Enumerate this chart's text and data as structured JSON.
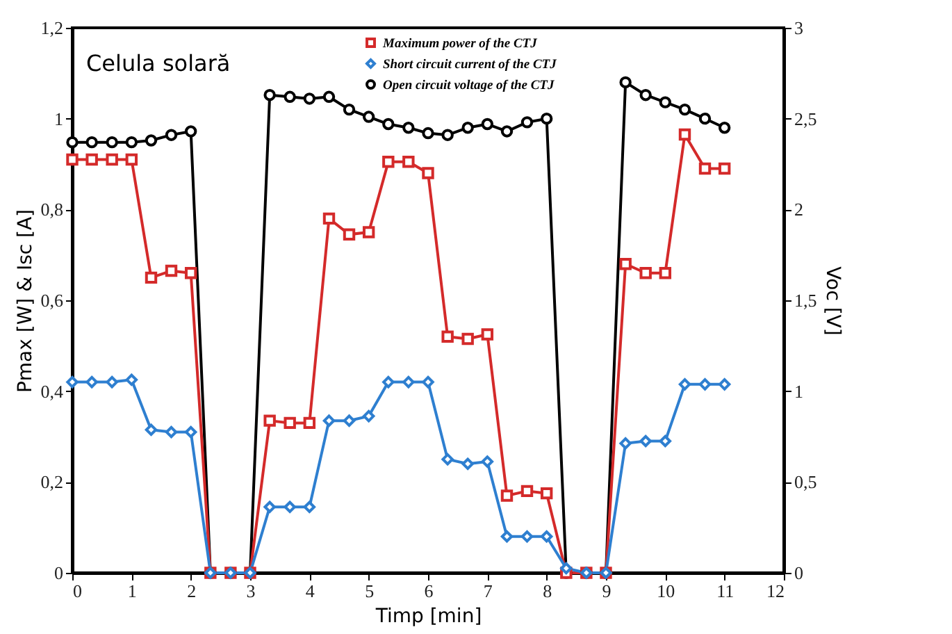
{
  "chart_data": {
    "type": "line",
    "xlabel": "Timp [min]",
    "ylabel": "Pmax [W] & Isc [A]",
    "y2label": "Voc [V]",
    "annotations": [
      "Celula solară"
    ],
    "x": [
      0,
      0.33,
      0.67,
      1,
      1.33,
      1.67,
      2,
      2.33,
      2.67,
      3,
      3.33,
      3.67,
      4,
      4.33,
      4.67,
      5,
      5.33,
      5.67,
      6,
      6.33,
      6.67,
      7,
      7.33,
      7.67,
      8,
      8.33,
      8.67,
      9,
      9.33,
      9.67,
      10,
      10.33,
      10.67,
      11
    ],
    "series": [
      {
        "name": "Maximum power of the CTJ",
        "color": "#d42a2a",
        "marker": "square",
        "values": [
          0.91,
          0.91,
          0.91,
          0.91,
          0.65,
          0.665,
          0.66,
          0,
          0,
          0,
          0.335,
          0.33,
          0.33,
          0.78,
          0.745,
          0.75,
          0.905,
          0.905,
          0.88,
          0.52,
          0.515,
          0.525,
          0.17,
          0.18,
          0.175,
          0,
          0,
          0,
          0.68,
          0.66,
          0.66,
          0.965,
          0.89,
          0.89
        ]
      },
      {
        "name": "Short circuit current of the CTJ",
        "color": "#2e7fd0",
        "marker": "diamond",
        "values": [
          0.42,
          0.42,
          0.42,
          0.425,
          0.315,
          0.31,
          0.31,
          0,
          0,
          0,
          0.145,
          0.145,
          0.145,
          0.335,
          0.335,
          0.345,
          0.42,
          0.42,
          0.42,
          0.25,
          0.24,
          0.245,
          0.08,
          0.08,
          0.08,
          0.01,
          0,
          0,
          0.285,
          0.29,
          0.29,
          0.415,
          0.415,
          0.415
        ]
      },
      {
        "name": "Open circuit voltage of the CTJ",
        "color": "#000000",
        "marker": "circle",
        "axis": "y2",
        "values": [
          2.37,
          2.37,
          2.37,
          2.37,
          2.38,
          2.41,
          2.43,
          0,
          0,
          0,
          2.63,
          2.62,
          2.61,
          2.62,
          2.55,
          2.51,
          2.47,
          2.45,
          2.42,
          2.41,
          2.45,
          2.47,
          2.43,
          2.48,
          2.5,
          0,
          0,
          0,
          2.7,
          2.63,
          2.59,
          2.55,
          2.5,
          2.45
        ]
      }
    ],
    "xlim": [
      0,
      12
    ],
    "xticks": [
      0,
      1,
      2,
      3,
      4,
      5,
      6,
      7,
      8,
      9,
      10,
      11,
      12
    ],
    "ylim": [
      0,
      1.2
    ],
    "yticks": [
      0,
      {
        "value": 0.2,
        "label": "0,2"
      },
      {
        "value": 0.4,
        "label": "0,4"
      },
      {
        "value": 0.6,
        "label": "0,6"
      },
      {
        "value": 0.8,
        "label": "0,8"
      },
      1,
      {
        "value": 1.2,
        "label": "1,2"
      }
    ],
    "y2lim": [
      0,
      3
    ],
    "y2ticks": [
      0,
      {
        "value": 0.5,
        "label": "0,5"
      },
      1,
      {
        "value": 1.5,
        "label": "1,5"
      },
      2,
      {
        "value": 2.5,
        "label": "2,5"
      },
      3
    ],
    "legend": "top right",
    "grid": false
  }
}
